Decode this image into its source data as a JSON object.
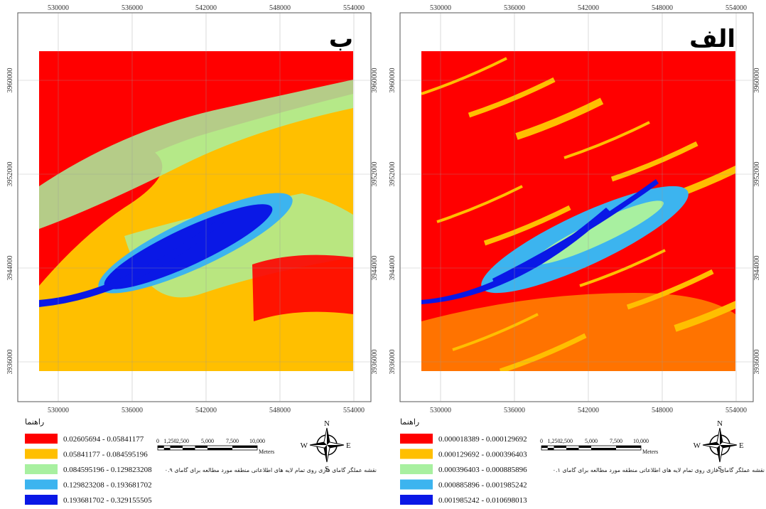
{
  "panels": [
    {
      "label": "ب",
      "x_ticks": [
        530000,
        536000,
        542000,
        548000,
        554000
      ],
      "y_ticks": [
        3960000,
        3952000,
        3944000,
        3936000
      ],
      "legend": {
        "title": "راهنما",
        "classes": [
          {
            "label": "0.02605694 - 0.05841177",
            "color": "#ff0000"
          },
          {
            "label": "0.05841177 - 0.084595196",
            "color": "#ffbf00"
          },
          {
            "label": "0.084595196 - 0.129823208",
            "color": "#a8f0a0"
          },
          {
            "label": "0.129823208 - 0.193681702",
            "color": "#3cb4ef"
          },
          {
            "label": "0.193681702 - 0.329155505",
            "color": "#0a18e6"
          }
        ]
      },
      "scale_bar": {
        "labels": [
          "0",
          "1,250",
          "2,500",
          "5,000",
          "7,500",
          "10,000"
        ],
        "unit": "Meters"
      },
      "north_arrow": {
        "n": "N",
        "e": "E",
        "s": "S",
        "w": "W"
      },
      "caption": "نقشه عملگر گامای فازی روی تمام لایه های اطلاعاتی منطقه مورد مطالعه برای گامای ۰.۹"
    },
    {
      "label": "الف",
      "x_ticks": [
        530000,
        536000,
        542000,
        548000,
        554000
      ],
      "y_ticks": [
        3960000,
        3952000,
        3944000,
        3936000
      ],
      "legend": {
        "title": "راهنما",
        "classes": [
          {
            "label": "0.000018389 - 0.000129692",
            "color": "#ff0000"
          },
          {
            "label": "0.000129692 - 0.000396403",
            "color": "#ffbf00"
          },
          {
            "label": "0.000396403 - 0.000885896",
            "color": "#a8f0a0"
          },
          {
            "label": "0.000885896 - 0.001985242",
            "color": "#3cb4ef"
          },
          {
            "label": "0.001985242 - 0.010698013",
            "color": "#0a18e6"
          }
        ]
      },
      "scale_bar": {
        "labels": [
          "0",
          "1,250",
          "2,500",
          "5,000",
          "7,500",
          "10,000"
        ],
        "unit": "Meters"
      },
      "north_arrow": {
        "n": "N",
        "e": "E",
        "s": "S",
        "w": "W"
      },
      "caption": "نقشه عملگر گامای فازی روی تمام لایه های اطلاعاتی منطقه مورد مطالعه برای گامای ۰.۱"
    }
  ]
}
